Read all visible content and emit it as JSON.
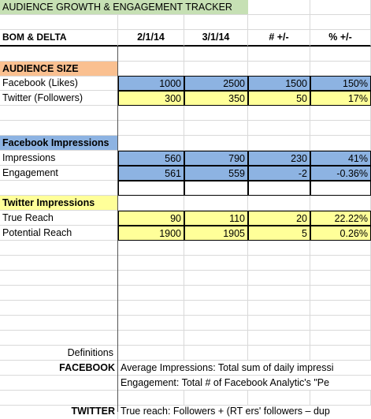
{
  "title": "AUDIENCE GROWTH & ENGAGEMENT TRACKER",
  "header": {
    "label": "BOM & DELTA",
    "col1": "2/1/14",
    "col2": "3/1/14",
    "col3": "# +/-",
    "col4": "% +/-"
  },
  "audience": {
    "section": "AUDIENCE SIZE",
    "rows": [
      {
        "label": "Facebook (Likes)",
        "v1": "1000",
        "v2": "2500",
        "d": "1500",
        "p": "150%"
      },
      {
        "label": "Twitter (Followers)",
        "v1": "300",
        "v2": "350",
        "d": "50",
        "p": "17%"
      }
    ]
  },
  "facebook": {
    "section": "Facebook Impressions",
    "rows": [
      {
        "label": "Impressions",
        "v1": "560",
        "v2": "790",
        "d": "230",
        "p": "41%"
      },
      {
        "label": "Engagement",
        "v1": "561",
        "v2": "559",
        "d": "-2",
        "p": "-0.36%"
      }
    ]
  },
  "twitter": {
    "section": "Twitter Impressions",
    "rows": [
      {
        "label": "True Reach",
        "v1": "90",
        "v2": "110",
        "d": "20",
        "p": "22.22%"
      },
      {
        "label": "Potential Reach",
        "v1": "1900",
        "v2": "1905",
        "d": "5",
        "p": "0.26%"
      }
    ]
  },
  "definitions": {
    "heading": "Definitions",
    "facebook_label": "FACEBOOK",
    "facebook_line1": "Average Impressions: Total sum of daily impressi",
    "facebook_line2": "Engagement: Total # of Facebook Analytic's \"Pe",
    "twitter_label": "TWITTER",
    "twitter_line1": "True reach: Followers + (RT ers' followers – dup"
  }
}
